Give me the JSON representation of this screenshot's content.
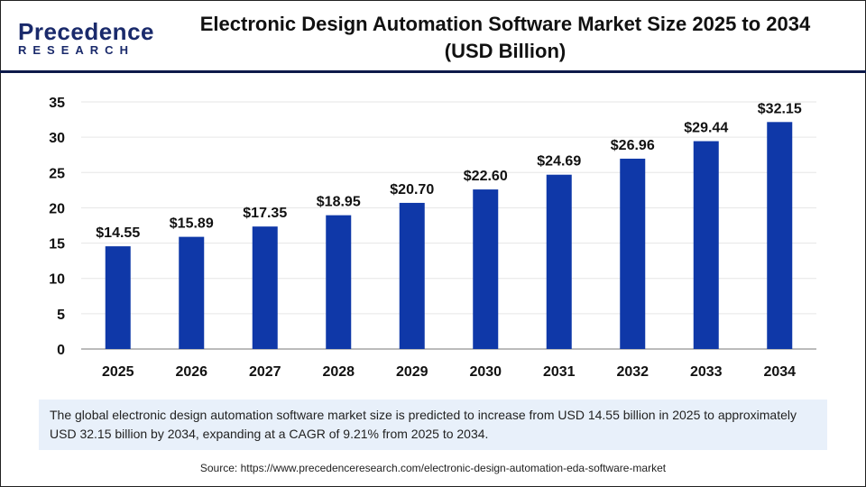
{
  "logo": {
    "main": "Precedence",
    "sub": "RESEARCH"
  },
  "title_line1": "Electronic Design Automation Software Market Size 2025 to 2034",
  "title_line2": "(USD Billion)",
  "chart_data": {
    "type": "bar",
    "title": "Electronic Design Automation Software Market Size 2025 to 2034 (USD Billion)",
    "categories": [
      "2025",
      "2026",
      "2027",
      "2028",
      "2029",
      "2030",
      "2031",
      "2032",
      "2033",
      "2034"
    ],
    "values": [
      14.55,
      15.89,
      17.35,
      18.95,
      20.7,
      22.6,
      24.69,
      26.96,
      29.44,
      32.15
    ],
    "data_labels": [
      "$14.55",
      "$15.89",
      "$17.35",
      "$18.95",
      "$20.70",
      "$22.60",
      "$24.69",
      "$26.96",
      "$29.44",
      "$32.15"
    ],
    "yticks": [
      0,
      5,
      10,
      15,
      20,
      25,
      30,
      35
    ],
    "ylim": [
      0,
      35
    ],
    "grid": true,
    "bar_color": "#0f38a8"
  },
  "description": "The global electronic design automation software market size is predicted to increase from USD 14.55 billion in 2025 to approximately USD 32.15 billion by 2034, expanding at a CAGR of 9.21% from 2025 to 2034.",
  "source": "Source: https://www.precedenceresearch.com/electronic-design-automation-eda-software-market"
}
